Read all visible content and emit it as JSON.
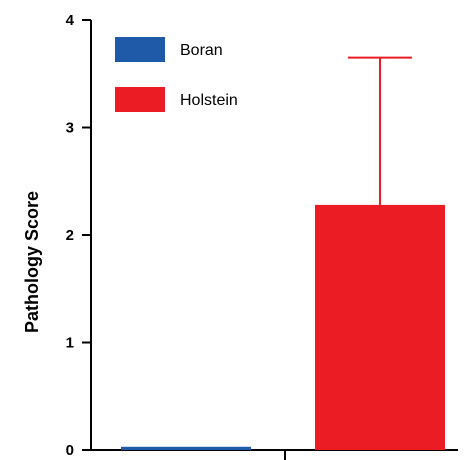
{
  "chart_data": {
    "type": "bar",
    "title": "",
    "xlabel": "",
    "ylabel": "Pathology Score",
    "ylim": [
      0,
      4
    ],
    "yticks": [
      "0",
      "1",
      "2",
      "3",
      "4"
    ],
    "grid": false,
    "legend_position": "top-left",
    "series": [
      {
        "name": "Boran",
        "value": 0.03,
        "error": 0,
        "color": "#1f5aa8"
      },
      {
        "name": "Holstein",
        "value": 2.28,
        "error": 1.37,
        "color": "#ec1c24"
      }
    ]
  }
}
